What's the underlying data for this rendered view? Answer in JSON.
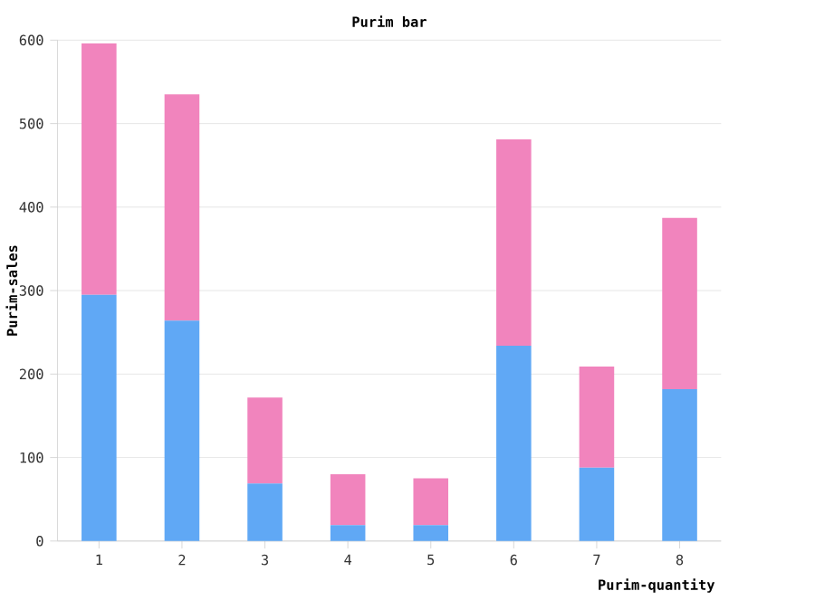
{
  "chart_data": {
    "type": "bar",
    "title": "Purim bar",
    "xlabel": "Purim-quantity",
    "ylabel": "Purim-sales",
    "categories": [
      "1",
      "2",
      "3",
      "4",
      "5",
      "6",
      "7",
      "8"
    ],
    "stacked": true,
    "series": [
      {
        "color": "#60a8f5",
        "values": [
          295,
          264,
          69,
          19,
          19,
          234,
          88,
          182
        ]
      },
      {
        "color": "#f184bd",
        "values": [
          301,
          271,
          103,
          61,
          56,
          247,
          121,
          205
        ]
      }
    ],
    "ylim": [
      0,
      600
    ],
    "yticks": [
      0,
      100,
      200,
      300,
      400,
      500,
      600
    ],
    "grid": "y"
  }
}
